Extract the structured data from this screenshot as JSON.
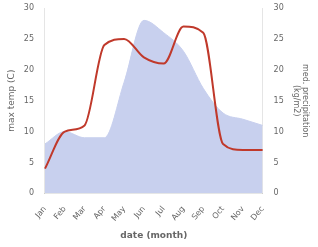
{
  "chart_data": {
    "type": "line",
    "xlabel": "date (month)",
    "ylabel": "max temp (C)",
    "y2label": "med. precipitation\n(kg/m2)",
    "categories": [
      "Jan",
      "Feb",
      "Mar",
      "Apr",
      "May",
      "Jun",
      "Jul",
      "Aug",
      "Sep",
      "Oct",
      "Nov",
      "Dec"
    ],
    "series": [
      {
        "name": "max temp (C)",
        "type": "area",
        "color": "#c8d0ee",
        "values": [
          8,
          10,
          9,
          9,
          18,
          28,
          26,
          23,
          17,
          13,
          12,
          11
        ]
      },
      {
        "name": "med. precipitation",
        "type": "line",
        "color": "#c0392b",
        "axis": "y2",
        "values": [
          4,
          10,
          11,
          24,
          25,
          22,
          21,
          27,
          26,
          8,
          7,
          7
        ]
      }
    ],
    "ylim": [
      0,
      30
    ],
    "yticks": [
      0,
      5,
      10,
      15,
      20,
      25,
      30
    ],
    "y2lim": [
      0,
      30
    ],
    "y2ticks": [
      0,
      5,
      10,
      15,
      20,
      25,
      30
    ],
    "grid": false
  }
}
